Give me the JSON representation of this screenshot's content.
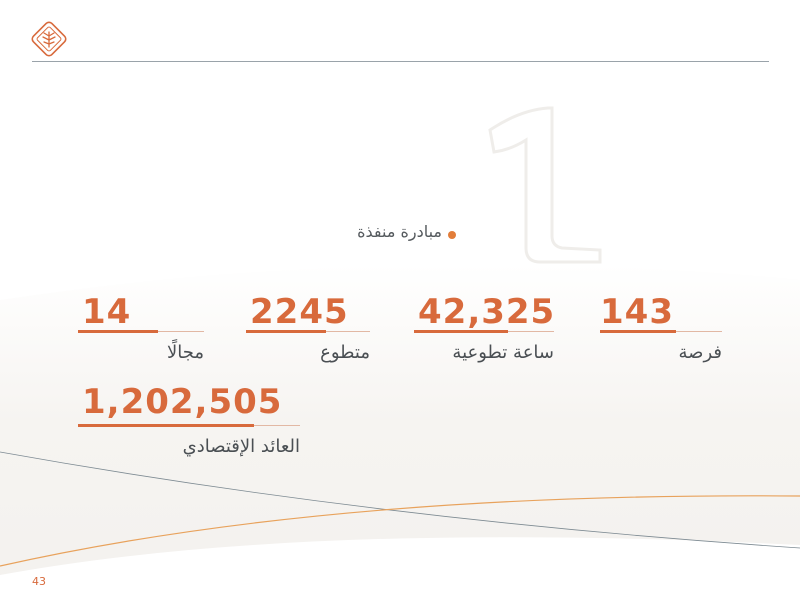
{
  "header": {
    "logo_icon": "palm-leaf-logo-icon"
  },
  "initiative": {
    "label": "مبادرة منفذة"
  },
  "stats": [
    {
      "value": "143",
      "label": "فرصة"
    },
    {
      "value": "42,325",
      "label": "ساعة تطوعية"
    },
    {
      "value": "2245",
      "label": "متطوع"
    },
    {
      "value": "14",
      "label": "مجالًا"
    },
    {
      "value": "1,202,505",
      "label": "العائد الإقتصادي"
    }
  ],
  "footer": {
    "page_number": "43"
  },
  "colors": {
    "accent": "#d86a3c",
    "dot": "#e27d3a",
    "rule": "#9aa3aa",
    "text": "#4a4f53"
  }
}
